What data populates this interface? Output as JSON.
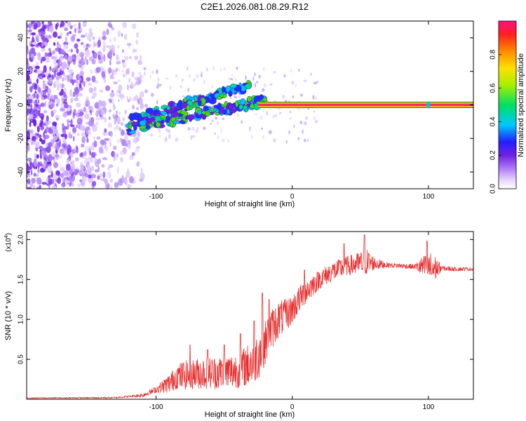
{
  "title": "C2E1.2026.081.08.29.R12",
  "colors": {
    "snr_line": "#e83030",
    "tone_band": "#ff2a6a",
    "tone_edge": "#1a7a30",
    "noise_purple": "#7b2cf0"
  },
  "chart_data": [
    {
      "type": "heatmap",
      "name": "spectrogram",
      "xlabel": "Height of straight line (km)",
      "ylabel": "Frequency (Hz)",
      "xlim": [
        -195,
        133
      ],
      "ylim": [
        -50,
        50
      ],
      "xticks": [
        -100,
        0,
        100
      ],
      "xtick_labels": [
        "-100",
        "0",
        "100"
      ],
      "yticks": [
        -40,
        -20,
        0,
        20,
        40
      ],
      "ytick_labels": [
        "-40",
        "-20",
        "0",
        "20",
        "40"
      ],
      "colorbar": {
        "label": "Normalized spectral amplitude",
        "range": [
          0,
          1
        ],
        "ticks": [
          0.0,
          0.2,
          0.4,
          0.6,
          0.8
        ],
        "tick_labels": [
          "0.0",
          "0.2",
          "0.4",
          "0.6",
          "0.8"
        ]
      },
      "features": {
        "tone_frequency": 0,
        "tone_start_km": -25,
        "tone_end_km": 133,
        "chirp_upper": {
          "x": [
            -120,
            -30
          ],
          "y": [
            -10,
            12
          ]
        },
        "chirp_lower": {
          "x": [
            -120,
            -20
          ],
          "y": [
            -14,
            3
          ]
        },
        "noise_end_km": -110
      }
    },
    {
      "type": "line",
      "name": "snr",
      "xlabel": "Height of straight line (km)",
      "ylabel": "SNR (10 * v/v)",
      "y_multiplier_label": "(x10",
      "y_multiplier_exp": "4",
      "y_multiplier_close": ")",
      "xlim": [
        -195,
        133
      ],
      "ylim": [
        0,
        2.1
      ],
      "xticks": [
        -100,
        0,
        100
      ],
      "xtick_labels": [
        "-100",
        "0",
        "100"
      ],
      "yticks": [
        0.5,
        1.0,
        1.5,
        2.0
      ],
      "ytick_labels": [
        "0.5",
        "1.0",
        "1.5",
        "2.0"
      ],
      "envelope": {
        "x": [
          -195,
          -130,
          -110,
          -100,
          -90,
          -85,
          -80,
          -70,
          -60,
          -50,
          -40,
          -30,
          -25,
          -20,
          -15,
          -10,
          -5,
          0,
          5,
          10,
          20,
          30,
          40,
          50,
          55,
          60,
          70,
          80,
          90,
          95,
          100,
          103,
          110,
          120,
          133
        ],
        "y": [
          0.015,
          0.02,
          0.05,
          0.12,
          0.2,
          0.28,
          0.3,
          0.32,
          0.33,
          0.33,
          0.36,
          0.45,
          0.55,
          0.7,
          0.88,
          1.0,
          1.05,
          1.12,
          1.25,
          1.35,
          1.5,
          1.6,
          1.67,
          1.7,
          1.72,
          1.7,
          1.68,
          1.67,
          1.66,
          1.66,
          1.66,
          1.64,
          1.64,
          1.63,
          1.63
        ]
      },
      "noise_amplitude": {
        "x": [
          -195,
          -120,
          -100,
          -90,
          -80,
          -40,
          -25,
          -15,
          0,
          20,
          40,
          55,
          60,
          70,
          90,
          95,
          103,
          110,
          133
        ],
        "y": [
          0.005,
          0.01,
          0.04,
          0.12,
          0.18,
          0.22,
          0.3,
          0.25,
          0.18,
          0.12,
          0.12,
          0.16,
          0.08,
          0.03,
          0.03,
          0.12,
          0.2,
          0.03,
          0.02
        ]
      },
      "peaks": [
        {
          "x": -75,
          "y": 0.68
        },
        {
          "x": -62,
          "y": 0.62
        },
        {
          "x": -50,
          "y": 0.68
        },
        {
          "x": -38,
          "y": 0.82
        },
        {
          "x": -28,
          "y": 0.98
        },
        {
          "x": -22,
          "y": 1.33
        },
        {
          "x": -17,
          "y": 1.25
        },
        {
          "x": 9,
          "y": 1.62
        },
        {
          "x": 38,
          "y": 1.95
        },
        {
          "x": 53,
          "y": 2.06
        },
        {
          "x": 99,
          "y": 1.98
        }
      ]
    }
  ]
}
